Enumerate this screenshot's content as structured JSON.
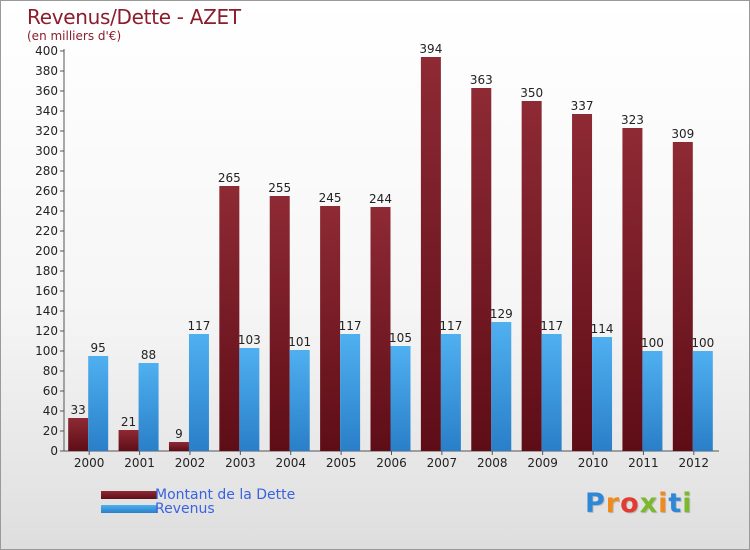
{
  "title": "Revenus/Dette - AZET",
  "subtitle": "(en milliers d'€)",
  "colors": {
    "dette": "#7a1e27",
    "revenus": "#3d9ee6",
    "title": "#8b1d2c",
    "legend_text": "#3a62e0"
  },
  "legend": {
    "dette_label": "Montant de la Dette",
    "revenus_label": "Revenus"
  },
  "logo": {
    "text": "Proxiti"
  },
  "chart_data": {
    "type": "bar",
    "title": "Revenus/Dette - AZET",
    "subtitle": "(en milliers d'€)",
    "xlabel": "",
    "ylabel": "",
    "ylim": [
      0,
      400
    ],
    "y_ticks": [
      0,
      20,
      40,
      60,
      80,
      100,
      120,
      140,
      160,
      180,
      200,
      220,
      240,
      260,
      280,
      300,
      320,
      340,
      360,
      380,
      400
    ],
    "grid": false,
    "legend_position": "bottom-left",
    "categories": [
      "2000",
      "2001",
      "2002",
      "2003",
      "2004",
      "2005",
      "2006",
      "2007",
      "2008",
      "2009",
      "2010",
      "2011",
      "2012"
    ],
    "series": [
      {
        "name": "Montant de la Dette",
        "values": [
          33,
          21,
          9,
          265,
          255,
          245,
          244,
          394,
          363,
          350,
          337,
          323,
          309
        ]
      },
      {
        "name": "Revenus",
        "values": [
          95,
          88,
          117,
          103,
          101,
          117,
          105,
          117,
          129,
          117,
          114,
          100,
          100
        ]
      }
    ]
  }
}
